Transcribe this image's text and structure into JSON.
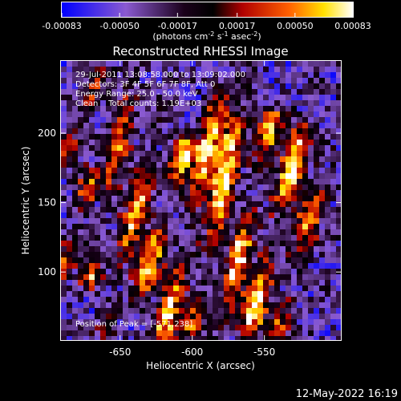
{
  "colorbar": {
    "tick_labels": [
      "-0.00083",
      "-0.00050",
      "-0.00017",
      "0.00017",
      "0.00050",
      "0.00083"
    ],
    "tick_values": [
      -0.00083,
      -0.0005,
      -0.00017,
      0.00017,
      0.0005,
      0.00083
    ],
    "range": [
      -0.00083,
      0.00083
    ],
    "unit_main": "(photons cm",
    "unit_exp1": "-2",
    "unit_mid1": " s",
    "unit_exp2": "-1",
    "unit_mid2": " asec",
    "unit_exp3": "-2",
    "unit_end": ")",
    "colors": [
      "#0000ff",
      "#8a5ad0",
      "#000000",
      "#b00000",
      "#ff6000",
      "#ffe000",
      "#ffffff"
    ]
  },
  "info": {
    "line1": "29-Jul-2011 13:08:58.000 to 13:09:02.000",
    "line2": "Detectors: 3F 4F 5F 6F 7F 8F, Att 0",
    "line3": "Energy Range: 25.0 - 50.0 keV",
    "line4": "Clean    Total counts: 1.19E+03",
    "peak": "Position of Peak = [-571,238]"
  },
  "footer": {
    "date": "12-May-2022 16:19"
  },
  "chart_data": {
    "type": "heatmap",
    "title": "Reconstructed RHESSI Image",
    "xlabel": "Heliocentric X (arcsec)",
    "ylabel": "Heliocentric Y (arcsec)",
    "xlim": [
      -691,
      -497
    ],
    "ylim": [
      51,
      252
    ],
    "x_ticks": [
      -650,
      -600,
      -550
    ],
    "y_ticks": [
      100,
      150,
      200
    ],
    "x_tick_labels": [
      "-650",
      "-600",
      "-550"
    ],
    "y_tick_labels": [
      "100",
      "150",
      "200"
    ],
    "value_range": [
      -0.00083,
      0.00083
    ],
    "pattern": "diagonal streaks of positive flux running from lower-left to upper-right over a negative (blue/purple) background",
    "streaks": [
      {
        "x": -670,
        "y": 95,
        "x2": -640,
        "y2": 250,
        "amp": 0.00055
      },
      {
        "x": -660,
        "y": 60,
        "x2": -620,
        "y2": 220,
        "amp": 0.00062
      },
      {
        "x": -640,
        "y": 70,
        "x2": -605,
        "y2": 190,
        "amp": 0.0007
      },
      {
        "x": -620,
        "y": 55,
        "x2": -580,
        "y2": 230,
        "amp": 0.00068
      },
      {
        "x": -600,
        "y": 60,
        "x2": -560,
        "y2": 252,
        "amp": 0.00083
      },
      {
        "x": -580,
        "y": 55,
        "x2": -545,
        "y2": 210,
        "amp": 0.00072
      },
      {
        "x": -560,
        "y": 60,
        "x2": -525,
        "y2": 200,
        "amp": 0.00078
      },
      {
        "x": -540,
        "y": 60,
        "x2": -505,
        "y2": 190,
        "amp": 0.0006
      },
      {
        "x": -690,
        "y": 100,
        "x2": -670,
        "y2": 170,
        "amp": 0.00045
      },
      {
        "x": -690,
        "y": 180,
        "x2": -665,
        "y2": 240,
        "amp": 0.0004
      }
    ]
  }
}
